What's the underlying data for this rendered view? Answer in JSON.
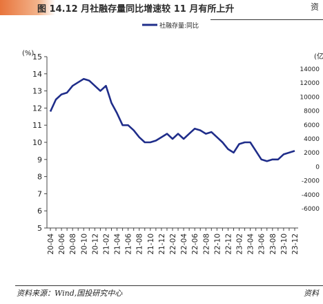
{
  "header": {
    "title": "图 14.12 月社融存量同比增速较 11 月有所上升",
    "right_cut": "资"
  },
  "footer": {
    "source": "资料来源：Wind,国投研究中心",
    "right_cut": "资料"
  },
  "chart_data": {
    "type": "line",
    "legend_position": "top-center",
    "left_unit": "(%)",
    "right_unit": "(亿",
    "ylim": [
      5,
      15
    ],
    "yticks": [
      "5",
      "6",
      "7",
      "8",
      "9",
      "10",
      "11",
      "12",
      "13",
      "14",
      "15"
    ],
    "y2ticks": [
      "-6000",
      "-4000",
      "-2000",
      "0",
      "2000",
      "4000",
      "6000",
      "8000",
      "10000",
      "12000",
      "14000"
    ],
    "categories": [
      "2020-04",
      "2020-05",
      "2020-06",
      "2020-07",
      "2020-08",
      "2020-09",
      "2020-10",
      "2020-11",
      "2020-12",
      "2021-01",
      "2021-02",
      "2021-03",
      "2021-04",
      "2021-05",
      "2021-06",
      "2021-07",
      "2021-08",
      "2021-09",
      "2021-10",
      "2021-11",
      "2021-12",
      "2022-01",
      "2022-02",
      "2022-03",
      "2022-04",
      "2022-05",
      "2022-06",
      "2022-07",
      "2022-08",
      "2022-09",
      "2022-10",
      "2022-11",
      "2022-12",
      "2023-01",
      "2023-02",
      "2023-03",
      "2023-04",
      "2023-05",
      "2023-06",
      "2023-07",
      "2023-08",
      "2023-09",
      "2023-10",
      "2023-11",
      "2023-12"
    ],
    "tick_labels": [
      "20-04",
      "20-06",
      "20-08",
      "20-10",
      "20-12",
      "21-02",
      "21-04",
      "21-06",
      "21-08",
      "21-10",
      "21-12",
      "22-02",
      "22-04",
      "22-06",
      "22-08",
      "22-10",
      "22-12",
      "23-02",
      "23-04",
      "23-06",
      "23-08",
      "23-10",
      "23-12"
    ],
    "series": [
      {
        "name": "社融存量:同比",
        "color": "#1f2d8a",
        "values": [
          11.8,
          12.5,
          12.8,
          12.9,
          13.3,
          13.5,
          13.7,
          13.6,
          13.3,
          13.0,
          13.3,
          12.3,
          11.7,
          11.0,
          11.0,
          10.7,
          10.3,
          10.0,
          10.0,
          10.1,
          10.3,
          10.5,
          10.2,
          10.5,
          10.2,
          10.5,
          10.8,
          10.7,
          10.5,
          10.6,
          10.3,
          10.0,
          9.6,
          9.4,
          9.9,
          10.0,
          10.0,
          9.5,
          9.0,
          8.9,
          9.0,
          9.0,
          9.3,
          9.4,
          9.5
        ]
      }
    ]
  }
}
